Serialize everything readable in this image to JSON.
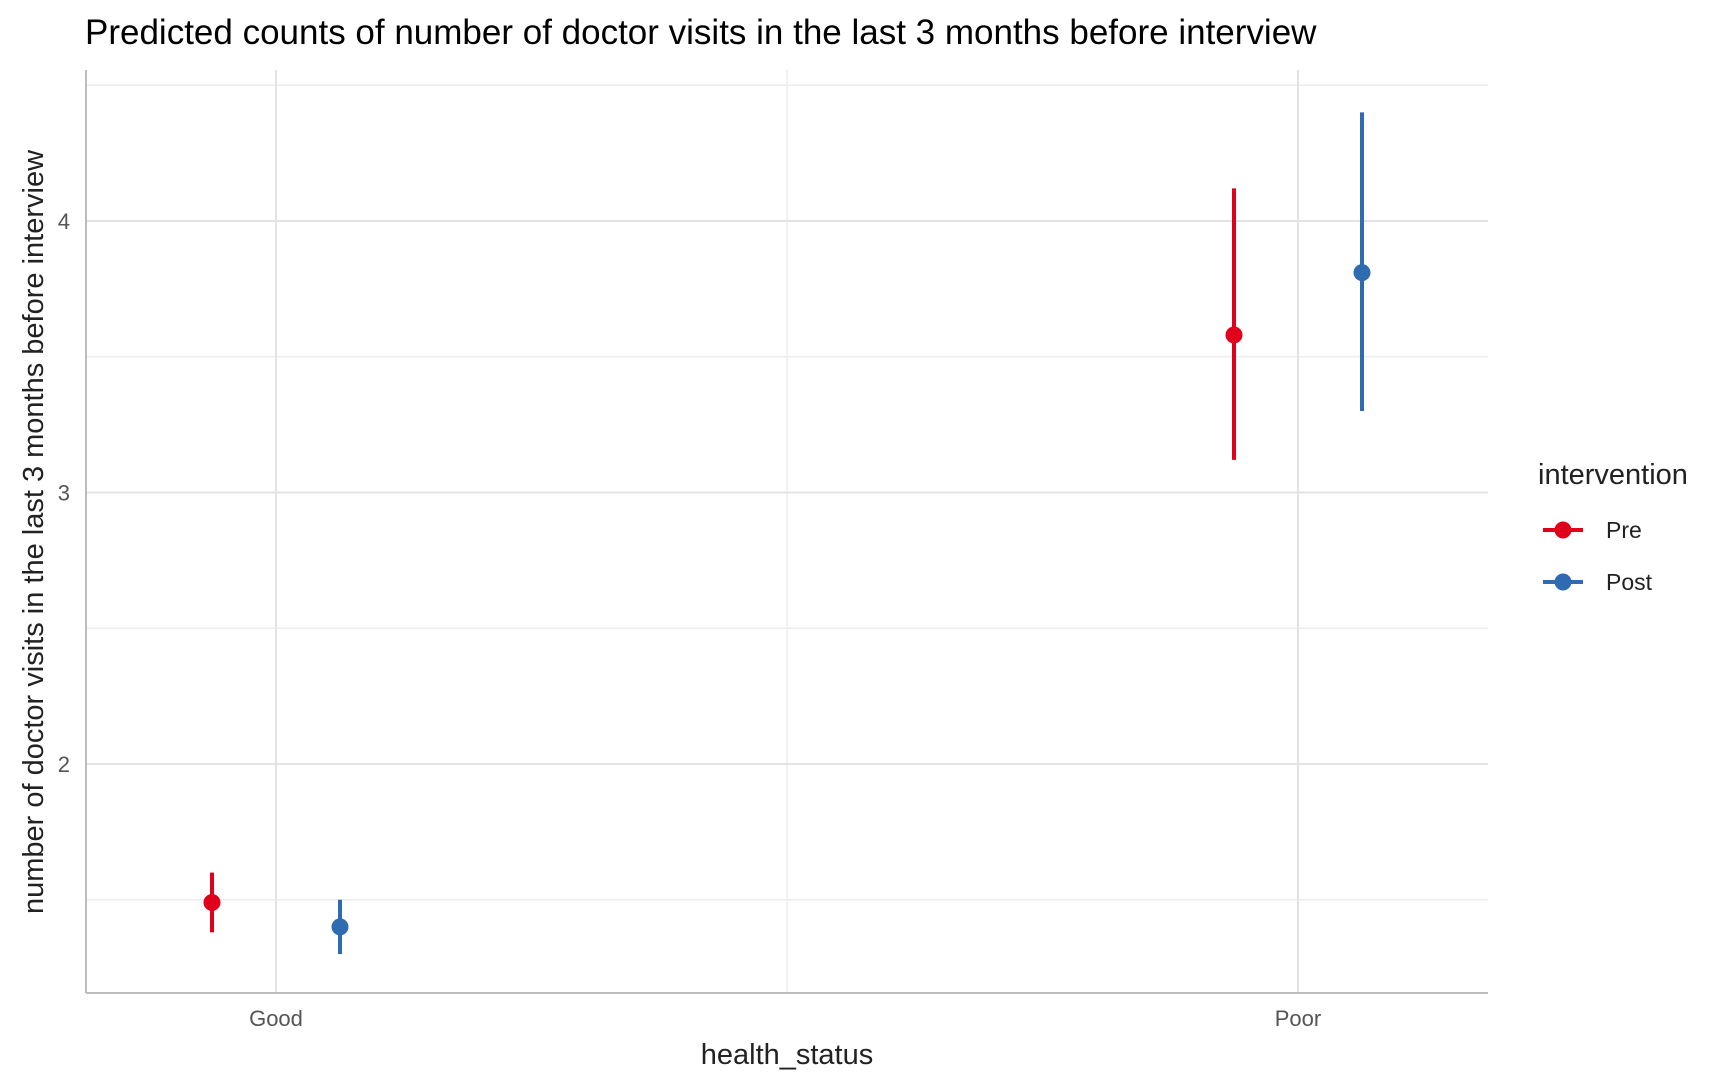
{
  "chart_data": {
    "type": "scatter",
    "title": "Predicted counts of number of doctor visits in the last 3 months before interview",
    "xlabel": "health_status",
    "ylabel": "number of doctor visits in the last 3 months before interview",
    "categories": [
      "Good",
      "Poor"
    ],
    "y_ticks": [
      "2",
      "3",
      "4"
    ],
    "ylim": [
      1.3,
      4.5
    ],
    "grid": true,
    "legend": {
      "title": "intervention",
      "placement": "right"
    },
    "series": [
      {
        "name": "Pre",
        "color": "#E0001B",
        "points": [
          {
            "category": "Good",
            "y": 1.49,
            "low": 1.38,
            "high": 1.6
          },
          {
            "category": "Poor",
            "y": 3.58,
            "low": 3.12,
            "high": 4.12
          }
        ]
      },
      {
        "name": "Post",
        "color": "#2F6BB0",
        "points": [
          {
            "category": "Good",
            "y": 1.4,
            "low": 1.3,
            "high": 1.5
          },
          {
            "category": "Poor",
            "y": 3.81,
            "low": 3.3,
            "high": 4.4
          }
        ]
      }
    ]
  }
}
